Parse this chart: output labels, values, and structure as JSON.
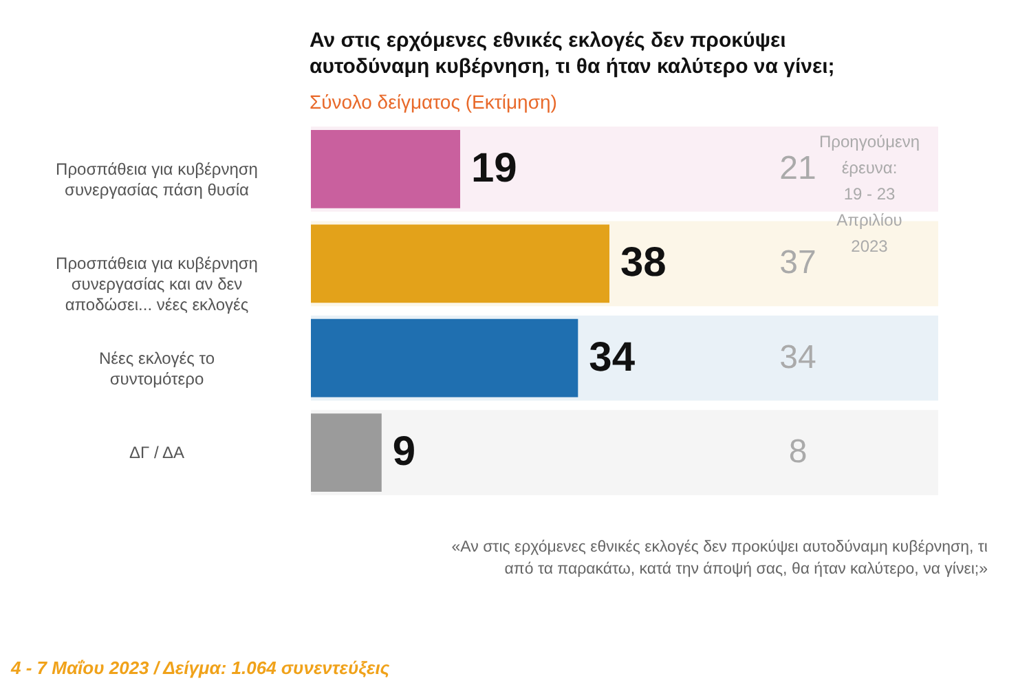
{
  "chart_data": {
    "type": "bar",
    "orientation": "horizontal",
    "title": "Αν στις ερχόμενες εθνικές εκλογές δεν προκύψει αυτοδύναμη κυβέρνηση, τι θα ήταν καλύτερο να γίνει;",
    "subtitle": "Σύνολο δείγματος   (Εκτίμηση)",
    "categories": [
      "Προσπάθεια για κυβέρνηση συνεργασίας πάση θυσία",
      "Προσπάθεια για κυβέρνηση συνεργασίας και αν δεν αποδώσει... νέες εκλογές",
      "Νέες εκλογές το συντομότερο",
      "ΔΓ / ΔΑ"
    ],
    "values": [
      19,
      38,
      34,
      9
    ],
    "colors": [
      "#c9609e",
      "#e3a21a",
      "#1f6fb0",
      "#9b9b9b"
    ],
    "data_labels": true,
    "annotations": [
      "Προηγούμενη έρευνα: 19 - 23 Απριλίου 2023",
      "21",
      "37",
      "34",
      "8",
      "«Αν στις ερχόμενες εθνικές εκλογές δεν προκύψει αυτοδύναμη κυβέρνηση, τι από τα παρακάτω, κατά την άποψή σας, θα ήταν καλύτερο, να γίνει;»",
      "4 - 7 Μαΐου 2023  /  Δείγμα:  1.064 συνεντεύξεις"
    ]
  }
}
